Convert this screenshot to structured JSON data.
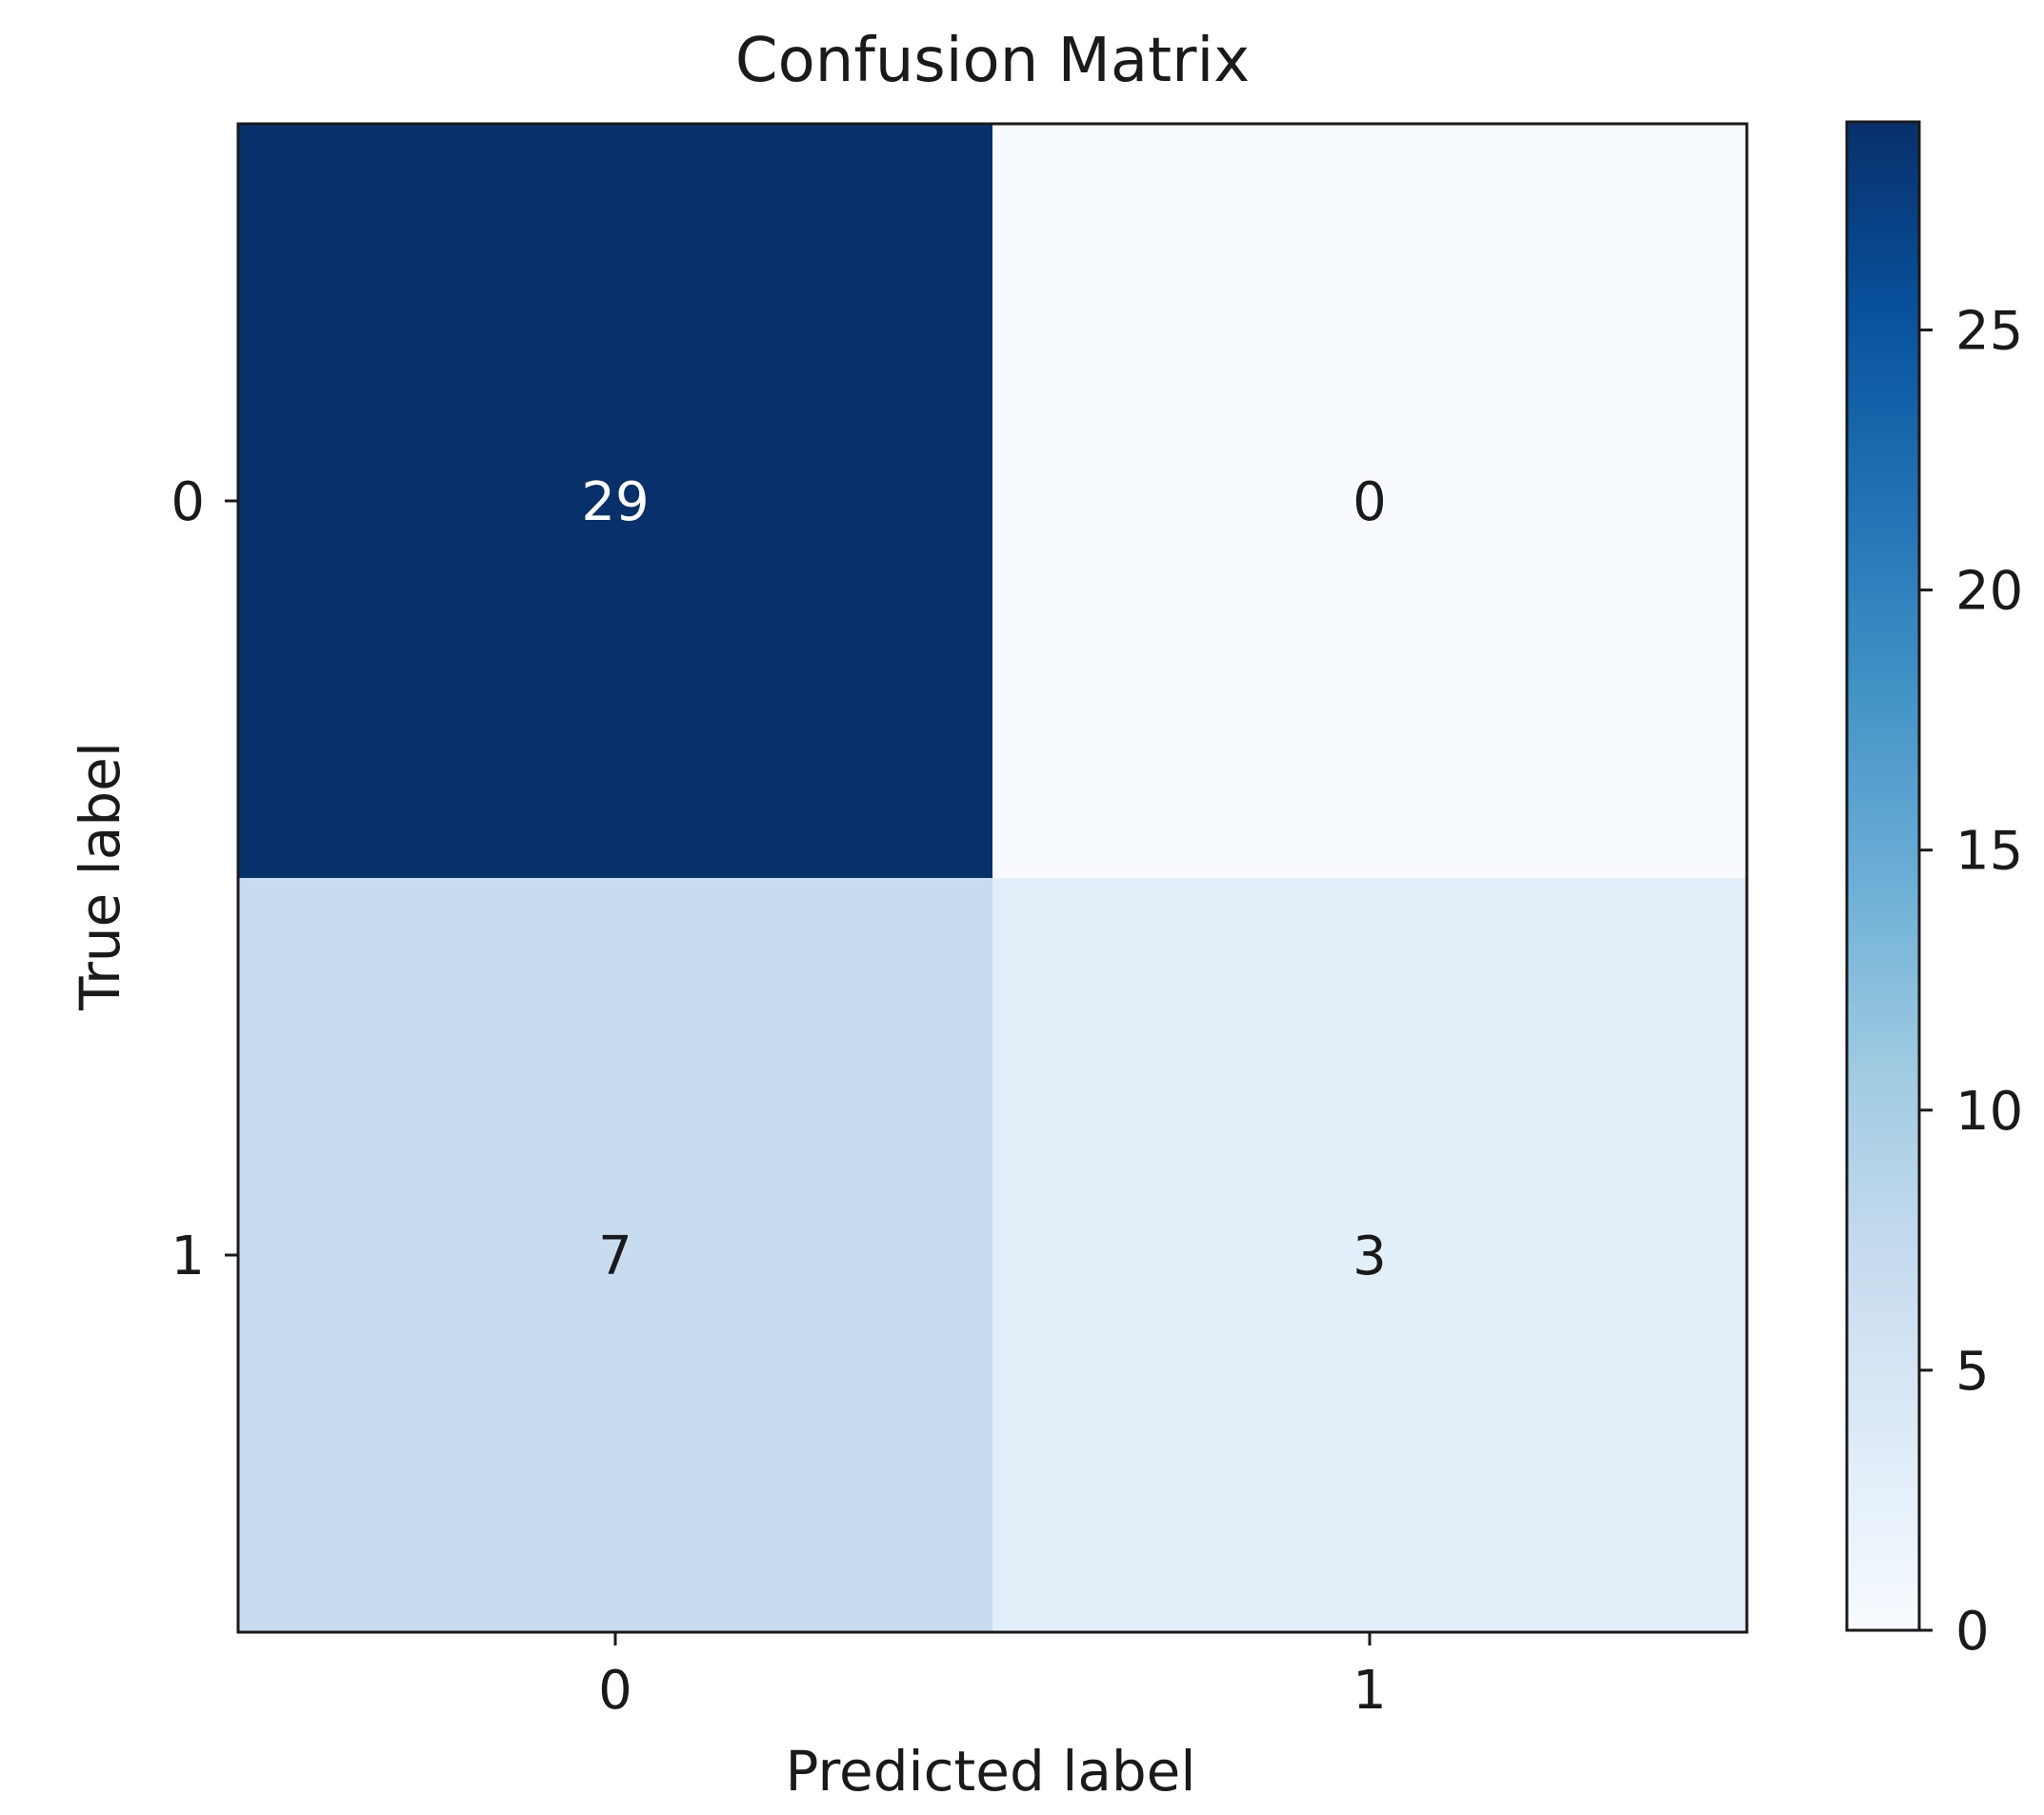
{
  "chart_data": {
    "type": "heatmap",
    "title": "Confusion Matrix",
    "xlabel": "Predicted label",
    "ylabel": "True label",
    "x_categories": [
      "0",
      "1"
    ],
    "y_categories": [
      "0",
      "1"
    ],
    "matrix": [
      [
        29,
        0
      ],
      [
        7,
        3
      ]
    ],
    "colormap": "Blues",
    "colorbar": {
      "range": [
        0,
        29
      ],
      "ticks": [
        0,
        5,
        10,
        15,
        20,
        25
      ],
      "tick_labels": [
        "0",
        "5",
        "10",
        "15",
        "20",
        "25"
      ]
    }
  }
}
